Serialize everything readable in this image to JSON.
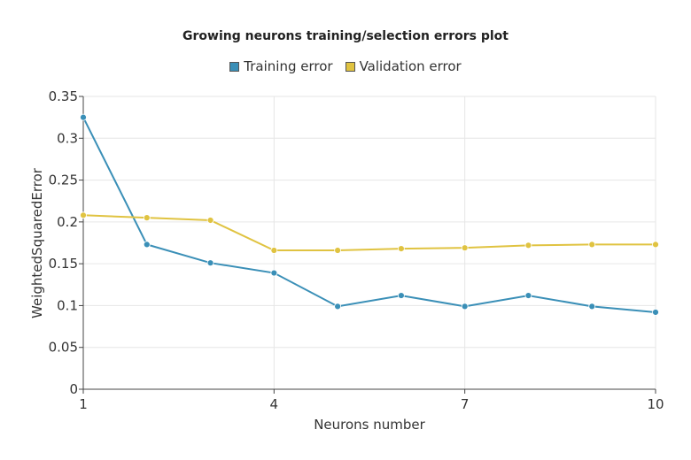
{
  "chart_data": {
    "type": "line",
    "title": "Growing neurons training/selection errors plot",
    "xlabel": "Neurons number",
    "ylabel": "WeightedSquaredError",
    "xlim": [
      1,
      10
    ],
    "ylim": [
      0,
      0.35
    ],
    "xticks": [
      "1",
      "4",
      "7",
      "10"
    ],
    "yticks": [
      "0",
      "0.05",
      "0.1",
      "0.15",
      "0.2",
      "0.25",
      "0.3",
      "0.35"
    ],
    "legend_position": "top-center",
    "grid": true,
    "x": [
      1,
      2,
      3,
      4,
      5,
      6,
      7,
      8,
      9,
      10
    ],
    "series": [
      {
        "name": "Training error",
        "color": "#3a8fb7",
        "values": [
          0.325,
          0.173,
          0.151,
          0.139,
          0.099,
          0.112,
          0.099,
          0.112,
          0.099,
          0.092
        ]
      },
      {
        "name": "Validation error",
        "color": "#e0c341",
        "values": [
          0.208,
          0.205,
          0.202,
          0.166,
          0.166,
          0.168,
          0.169,
          0.172,
          0.173,
          0.173
        ]
      }
    ]
  }
}
